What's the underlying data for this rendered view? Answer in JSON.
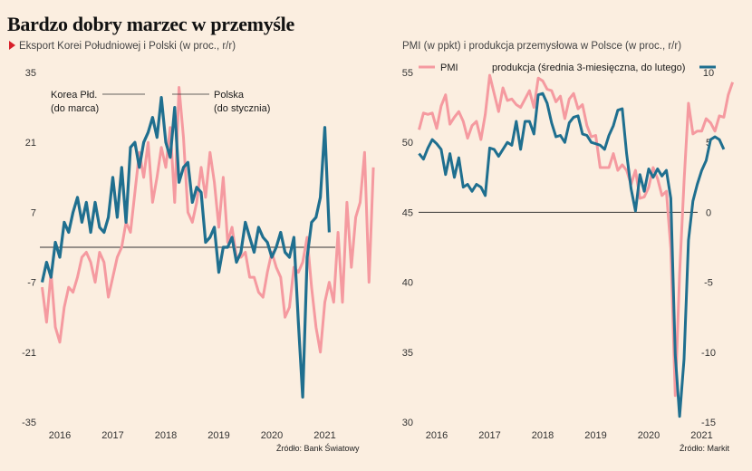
{
  "title": "Bardzo dobry marzec w przemyśle",
  "source_left": "Źródło: Bank Światowy",
  "source_right": "Źródło: Markit",
  "colors": {
    "pink": "#f59aa0",
    "blue": "#1f6f8f",
    "zero_line": "#333333",
    "background": "#fbeee0"
  },
  "chart_data": [
    {
      "type": "line",
      "title": "Eksport Korei Południowej i Polski (w proc., r/r)",
      "x_labels": [
        "2016",
        "2017",
        "2018",
        "2019",
        "2020",
        "2021"
      ],
      "y_ticks": [
        "35",
        "21",
        "7",
        "-7",
        "-21",
        "-35"
      ],
      "ylim": [
        -35,
        35
      ],
      "annotations": [
        {
          "line1": "Korea Płd.",
          "line2": "(do marca)"
        },
        {
          "line1": "Polska",
          "line2": "(do stycznia)"
        }
      ],
      "series": [
        {
          "name": "Korea Płd.",
          "color": "#f59aa0",
          "start": "2015-09",
          "end": "2021-03",
          "values": [
            -8,
            -15,
            -5,
            -16,
            -19,
            -12,
            -8,
            -9,
            -6,
            -2,
            -1,
            -3,
            -7,
            -1,
            -3,
            -10,
            -6,
            -2,
            0,
            5,
            3,
            11,
            19,
            14,
            21,
            9,
            14,
            20,
            16,
            24,
            9,
            32,
            22,
            7,
            5,
            9,
            16,
            10,
            19,
            13,
            4,
            14,
            1,
            4,
            -2,
            -2,
            -1,
            -6,
            -6,
            -9,
            -10,
            -5,
            -1,
            -4,
            -6,
            -14,
            -12,
            -4,
            -5,
            -3,
            2,
            -8,
            -16,
            -21,
            -11,
            -7,
            -11,
            3,
            -11,
            9,
            -4,
            6,
            9,
            19,
            -7,
            16
          ]
        },
        {
          "name": "Polska",
          "color": "#1f6f8f",
          "start": "2015-09",
          "end": "2021-01",
          "values": [
            -7,
            -3,
            -6,
            1,
            -2,
            5,
            3,
            7,
            10,
            5,
            9,
            3,
            9,
            4,
            3,
            6,
            14,
            6,
            16,
            5,
            20,
            21,
            16,
            21,
            23,
            26,
            22,
            30,
            21,
            18,
            28,
            13,
            16,
            17,
            9,
            12,
            11,
            1,
            2,
            4,
            -5,
            0,
            0,
            2,
            -3,
            -1,
            5,
            2,
            -1,
            4,
            2,
            1,
            -2,
            0,
            3,
            -1,
            -2,
            2,
            -15,
            -30,
            -2,
            5,
            6,
            10,
            24,
            3
          ]
        }
      ]
    },
    {
      "type": "line",
      "title": "PMI (w ppkt) i produkcja przemysłowa w Polsce (w proc., r/r)",
      "x_labels": [
        "2016",
        "2017",
        "2018",
        "2019",
        "2020",
        "2021"
      ],
      "y_ticks_left": [
        "55",
        "50",
        "45",
        "40",
        "35",
        "30"
      ],
      "y_ticks_right": [
        "10",
        "5",
        "0",
        "-5",
        "-10",
        "-15"
      ],
      "ylim_left": [
        30,
        55
      ],
      "ylim_right": [
        -15,
        10
      ],
      "series": [
        {
          "name": "PMI",
          "axis": "left",
          "color": "#f59aa0",
          "start": "2015-09",
          "end": "2021-03",
          "values": [
            50.9,
            52.1,
            52.0,
            52.1,
            51.0,
            52.6,
            53.4,
            51.3,
            51.8,
            52.2,
            51.5,
            50.3,
            51.2,
            51.5,
            50.2,
            52.0,
            54.8,
            53.5,
            52.2,
            53.9,
            53.0,
            53.1,
            52.7,
            52.5,
            53.1,
            53.7,
            52.5,
            54.6,
            54.4,
            53.8,
            53.7,
            52.9,
            53.3,
            51.7,
            53.1,
            53.5,
            52.4,
            52.7,
            51.2,
            50.4,
            50.5,
            48.2,
            48.2,
            48.2,
            49.2,
            48.0,
            48.4,
            48.0,
            47.0,
            48.0,
            46.0,
            46.1,
            46.8,
            48.2,
            47.4,
            46.2,
            46.5,
            42.4,
            31.9,
            40.6,
            47.2,
            52.8,
            50.6,
            50.8,
            50.8,
            51.7,
            51.4,
            50.8,
            51.9,
            51.8,
            53.4,
            54.3
          ]
        },
        {
          "name": "produkcja (średnia 3-miesięczna, do lutego)",
          "axis": "right",
          "color": "#1f6f8f",
          "start": "2015-09",
          "end": "2021-02",
          "values": [
            4.2,
            3.8,
            4.6,
            5.2,
            4.9,
            4.5,
            2.7,
            4.2,
            2.5,
            3.9,
            1.8,
            2.0,
            1.5,
            2.0,
            1.8,
            1.2,
            4.6,
            4.5,
            4.0,
            4.5,
            5.0,
            4.8,
            6.5,
            4.5,
            6.5,
            6.5,
            5.6,
            8.4,
            8.5,
            7.8,
            6.4,
            5.4,
            5.5,
            5.0,
            6.4,
            6.8,
            6.9,
            5.6,
            5.5,
            5.0,
            4.9,
            4.8,
            4.5,
            5.5,
            6.2,
            7.3,
            7.4,
            4.2,
            1.7,
            0.1,
            2.7,
            1.5,
            3.1,
            2.5,
            3.1,
            2.6,
            3.0,
            1.0,
            -10.2,
            -14.6,
            -10.5,
            -2.0,
            0.8,
            2.0,
            3.0,
            3.7,
            5.2,
            5.4,
            5.2,
            4.5
          ]
        }
      ],
      "legend": [
        {
          "label": "PMI"
        },
        {
          "label": "produkcja (średnia 3-miesięczna, do lutego)"
        }
      ]
    }
  ]
}
